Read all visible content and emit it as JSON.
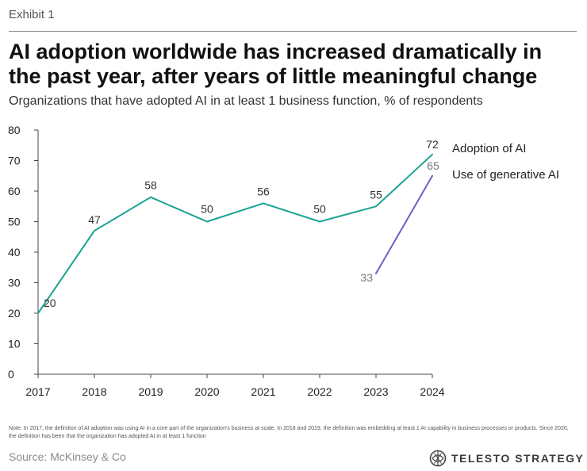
{
  "header": {
    "exhibit": "Exhibit 1",
    "title": "AI adoption worldwide has increased dramatically in the past year, after years of little meaningful change",
    "subtitle": "Organizations that have adopted AI in at least 1 business function, % of respondents"
  },
  "footer": {
    "note": "Note: In 2017, the definition of AI adoption was using AI in a core part of the organization's business at scale. In 2018 and 2019, the definition was embedding at least 1 AI capability in business processes or products. Since 2020, the definition has been that the organization has adopted AI in at least 1 function",
    "source": "Source: McKinsey & Co",
    "brand": "TELESTO STRATEGY",
    "brand_icon": "telesto-logo-icon"
  },
  "chart_data": {
    "type": "line",
    "x": [
      "2017",
      "2018",
      "2019",
      "2020",
      "2021",
      "2022",
      "2023",
      "2024"
    ],
    "ylim": [
      0,
      80
    ],
    "yticks": [
      0,
      10,
      20,
      30,
      40,
      50,
      60,
      70,
      80
    ],
    "grid": false,
    "legend_placement": "right of series end points",
    "series": [
      {
        "name": "Adoption of AI",
        "color": "#1aa392",
        "label_color": "#333333",
        "values": [
          20,
          47,
          58,
          50,
          56,
          50,
          55,
          72
        ]
      },
      {
        "name": "Use of generative AI",
        "color": "#6b5fc7",
        "label_color": "#777777",
        "values": [
          null,
          null,
          null,
          null,
          null,
          null,
          33,
          65
        ]
      }
    ]
  }
}
